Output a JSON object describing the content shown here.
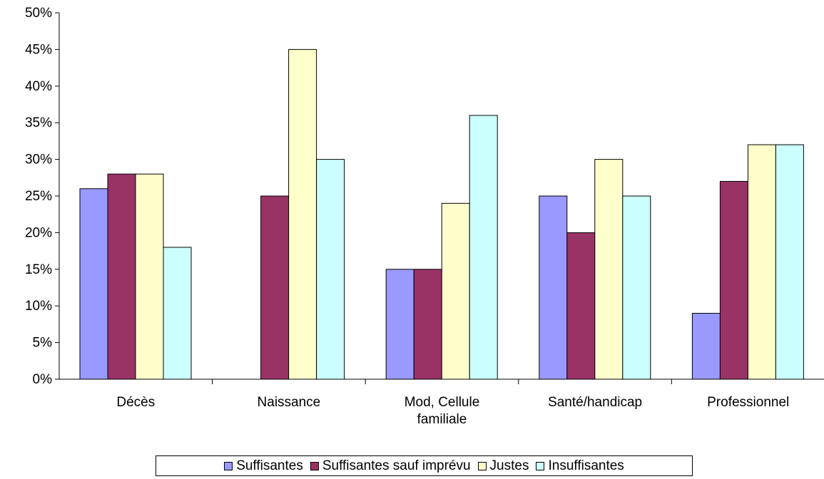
{
  "chart_data": {
    "type": "bar",
    "categories": [
      "Décès",
      "Naissance",
      "Mod, Cellule\nfamiliale",
      "Santé/handicap",
      "Professionnel"
    ],
    "series": [
      {
        "name": "Suffisantes",
        "color": "#9999ff",
        "values": [
          26,
          0,
          15,
          25,
          9
        ]
      },
      {
        "name": "Suffisantes sauf imprévu",
        "color": "#993366",
        "values": [
          28,
          25,
          15,
          20,
          27
        ]
      },
      {
        "name": "Justes",
        "color": "#ffffcc",
        "values": [
          28,
          45,
          24,
          30,
          32
        ]
      },
      {
        "name": "Insuffisantes",
        "color": "#ccffff",
        "values": [
          18,
          30,
          36,
          25,
          32
        ]
      }
    ],
    "ylim": [
      0,
      50
    ],
    "yticks": [
      "0%",
      "5%",
      "10%",
      "15%",
      "20%",
      "25%",
      "30%",
      "35%",
      "40%",
      "45%",
      "50%"
    ],
    "grid": false,
    "legend_position": "bottom"
  }
}
